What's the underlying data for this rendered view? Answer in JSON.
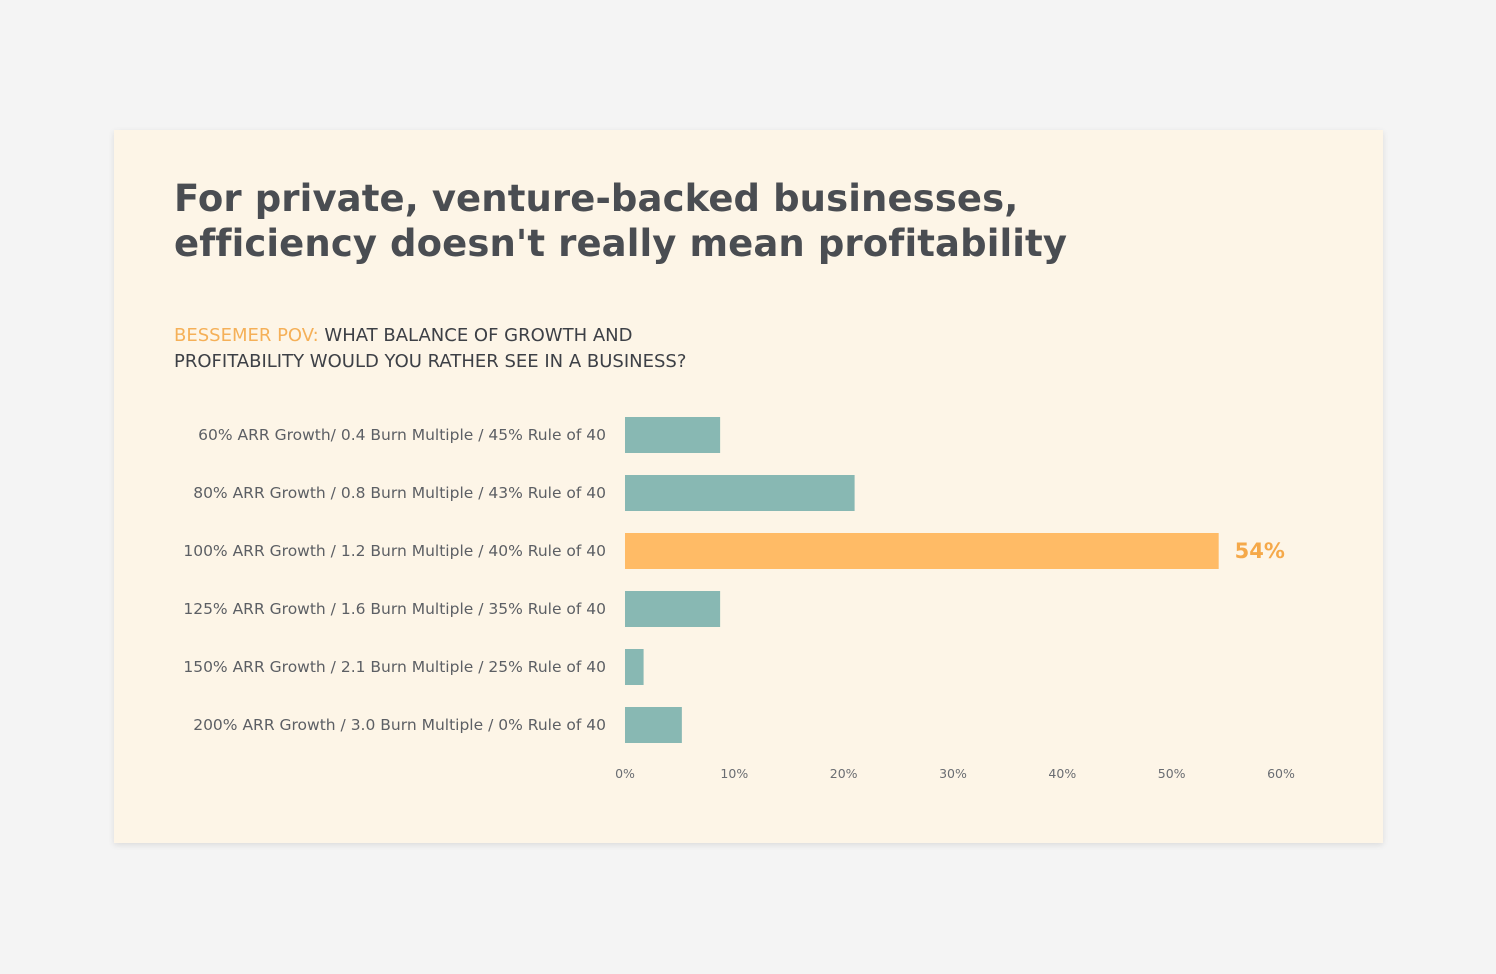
{
  "chart_data": {
    "type": "bar",
    "orientation": "horizontal",
    "title_lines": [
      "For private, venture-backed businesses,",
      "efficiency doesn't really mean profitability"
    ],
    "subtitle_prefix": "BESSEMER POV:",
    "subtitle_line1": " WHAT BALANCE OF GROWTH AND",
    "subtitle_line2": "PROFITABILITY WOULD YOU RATHER SEE IN A BUSINESS?",
    "categories": [
      "60% ARR Growth/ 0.4 Burn Multiple / 45% Rule of 40",
      "80% ARR Growth / 0.8 Burn Multiple / 43% Rule of 40",
      "100% ARR Growth / 1.2 Burn Multiple / 40% Rule of 40",
      "125% ARR Growth / 1.6 Burn Multiple / 35% Rule of 40",
      "150% ARR Growth / 2.1 Burn Multiple / 25% Rule of 40",
      "200% ARR Growth / 3.0 Burn Multiple / 0% Rule of 40"
    ],
    "values": [
      8.7,
      21.0,
      54.3,
      8.7,
      1.7,
      5.2
    ],
    "highlight_index": 2,
    "highlight_label": "54%",
    "xlim": [
      0,
      60
    ],
    "xticks": [
      0,
      10,
      20,
      30,
      40,
      50,
      60
    ],
    "xtick_labels": [
      "0%",
      "10%",
      "20%",
      "30%",
      "40%",
      "50%",
      "60%"
    ],
    "grid": false,
    "colors": {
      "bar": "#88b8b3",
      "highlight": "#ffbb66",
      "highlight_label": "#f5a94a",
      "title": "#4a4d52",
      "accent": "#f5b058",
      "card_background": "#fdf5e7",
      "page_background": "#f4f4f4"
    }
  }
}
